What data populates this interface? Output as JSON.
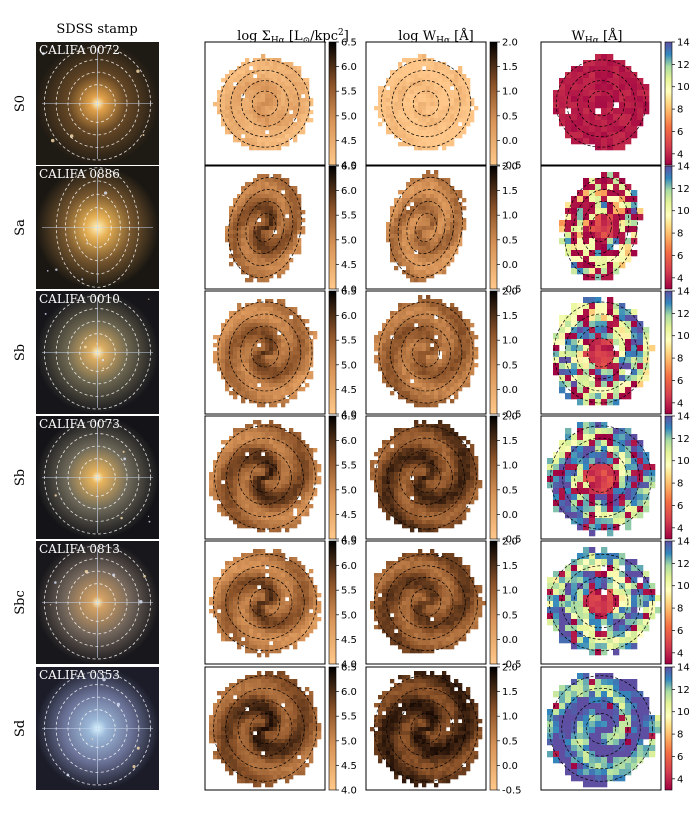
{
  "columns": [
    {
      "title": "SDSS stamp"
    },
    {
      "title": "log Σ",
      "sub": "Hα",
      "rest": " [L",
      "sub2": "⊙",
      "rest2": "/kpc",
      "sup": "2",
      "end": "]"
    },
    {
      "title": "log W",
      "sub": "Hα",
      "rest": " [Å]"
    },
    {
      "title": "W",
      "sub": "Hα",
      "rest": " [Å]"
    }
  ],
  "rows": [
    {
      "type": "S0",
      "id": "CALIFA 0072"
    },
    {
      "type": "Sa",
      "id": "CALIFA 0886"
    },
    {
      "type": "Sb",
      "id": "CALIFA 0010"
    },
    {
      "type": "Sb",
      "id": "CALIFA 0073"
    },
    {
      "type": "Sbc",
      "id": "CALIFA 0813"
    },
    {
      "type": "Sd",
      "id": "CALIFA 0353"
    }
  ],
  "colorbars": [
    {
      "name": "sigma",
      "ticks": [
        "6.5",
        "6.0",
        "5.5",
        "5.0",
        "4.5",
        "4.0"
      ],
      "range": [
        4.0,
        6.5
      ],
      "colormap": "copper_r"
    },
    {
      "name": "logw",
      "ticks": [
        "2.0",
        "1.5",
        "1.0",
        "0.5",
        "0.0",
        "-0.5"
      ],
      "range": [
        -0.5,
        2.0
      ],
      "colormap": "copper_r"
    },
    {
      "name": "w",
      "ticks": [
        "14",
        "12",
        "10",
        "8",
        "6",
        "4"
      ],
      "range": [
        3,
        14
      ],
      "colormap": "Spectral"
    }
  ],
  "colors": {
    "copper_light": "#f7c58a",
    "copper_mid": "#b9743e",
    "copper_dark": "#1c0d05",
    "spectral_low": "#9e0142",
    "spectral_mid": "#ffffbf",
    "spectral_high": "#5e4fa2"
  }
}
